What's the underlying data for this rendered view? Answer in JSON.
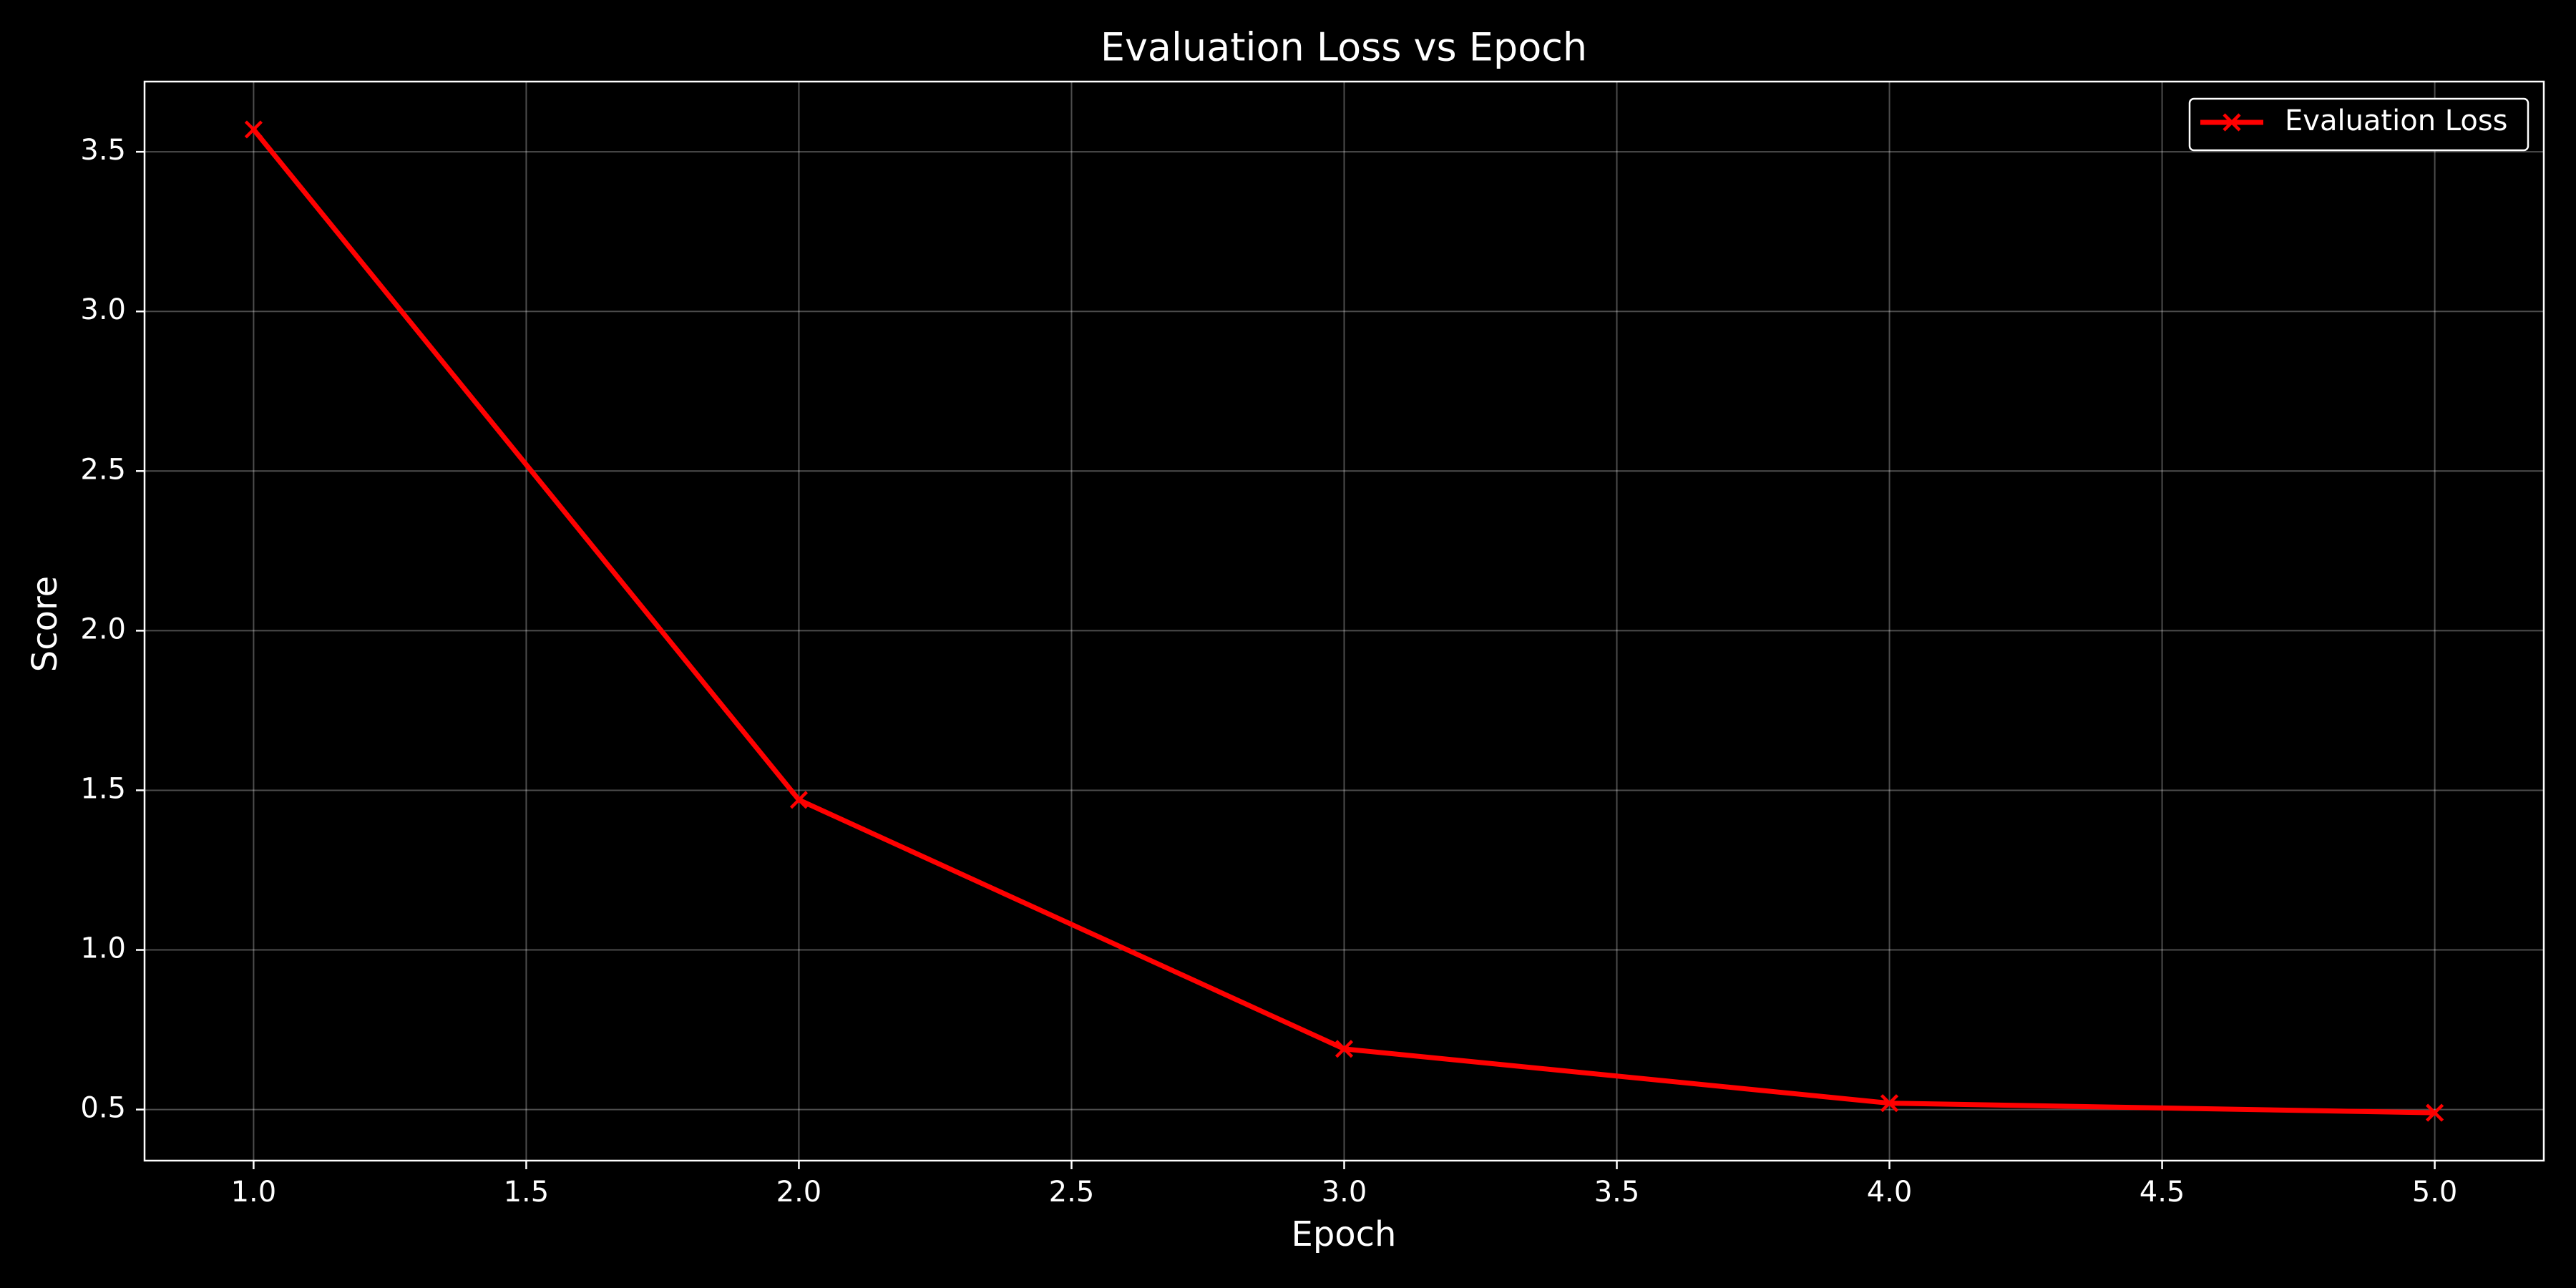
{
  "chart_data": {
    "type": "line",
    "title": "Evaluation Loss vs Epoch",
    "xlabel": "Epoch",
    "ylabel": "Score",
    "xlim": [
      0.8,
      5.2
    ],
    "ylim": [
      0.34,
      3.72
    ],
    "xticks": [
      1.0,
      1.5,
      2.0,
      2.5,
      3.0,
      3.5,
      4.0,
      4.5,
      5.0
    ],
    "xtick_labels": [
      "1.0",
      "1.5",
      "2.0",
      "2.5",
      "3.0",
      "3.5",
      "4.0",
      "4.5",
      "5.0"
    ],
    "yticks": [
      0.5,
      1.0,
      1.5,
      2.0,
      2.5,
      3.0,
      3.5
    ],
    "ytick_labels": [
      "0.5",
      "1.0",
      "1.5",
      "2.0",
      "2.5",
      "3.0",
      "3.5"
    ],
    "grid": true,
    "legend_position": "top-right",
    "series": [
      {
        "name": "Evaluation Loss",
        "color": "#ff0000",
        "marker": "x",
        "x": [
          1,
          2,
          3,
          4,
          5
        ],
        "y": [
          3.57,
          1.47,
          0.69,
          0.52,
          0.49
        ]
      }
    ]
  }
}
